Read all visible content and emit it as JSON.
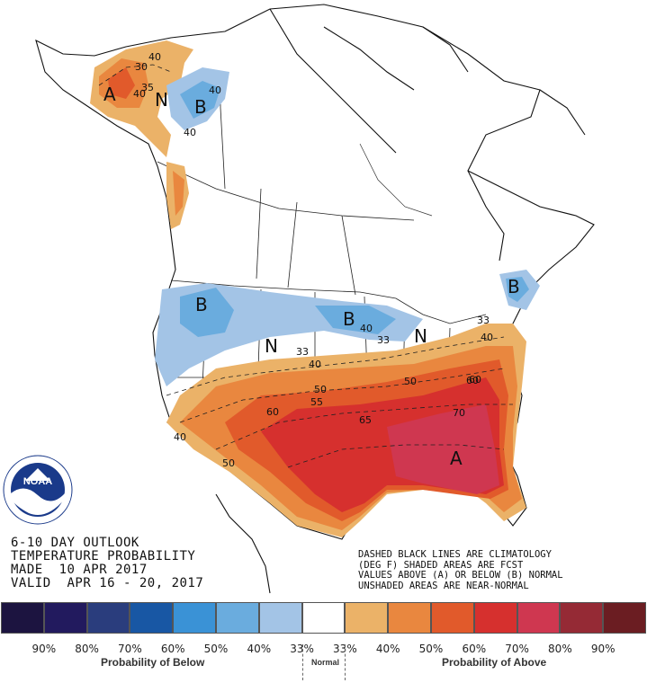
{
  "outlook": {
    "title_line1": "6-10 DAY OUTLOOK",
    "title_line2": "TEMPERATURE PROBABILITY",
    "made": "MADE  10 APR 2017",
    "valid": "VALID  APR 16 - 20, 2017"
  },
  "notes": {
    "line1": "DASHED BLACK LINES ARE CLIMATOLOGY",
    "line2": "(DEG F) SHADED AREAS ARE FCST",
    "line3": "VALUES ABOVE (A) OR BELOW (B) NORMAL",
    "line4": "UNSHADED AREAS ARE NEAR-NORMAL"
  },
  "logo": {
    "text": "NOAA",
    "color": "#1a3a8a"
  },
  "legend": {
    "swatch_colors": [
      "#1c1440",
      "#221a5e",
      "#2a3d7d",
      "#1857a4",
      "#3a92d6",
      "#6aacde",
      "#a3c4e6",
      "#ffffff",
      "#ebb268",
      "#e9873f",
      "#e15a2b",
      "#d6302e",
      "#cf3750",
      "#952a35",
      "#6b1d22"
    ],
    "percent_labels": [
      "90%",
      "80%",
      "70%",
      "60%",
      "50%",
      "40%",
      "33%",
      "33%",
      "40%",
      "50%",
      "60%",
      "70%",
      "80%",
      "90%"
    ],
    "below_caption": "Probability of Below",
    "normal_caption": "Normal",
    "above_caption": "Probability of Above"
  },
  "map_labels": {
    "letters": [
      "A",
      "N",
      "B",
      "B",
      "B",
      "N",
      "B",
      "N",
      "A"
    ],
    "contours": [
      "40",
      "30",
      "35",
      "40",
      "40",
      "40",
      "33",
      "40",
      "33",
      "40",
      "50",
      "55",
      "60",
      "60",
      "65",
      "70",
      "50",
      "33",
      "40",
      "50",
      "60",
      "40"
    ]
  }
}
